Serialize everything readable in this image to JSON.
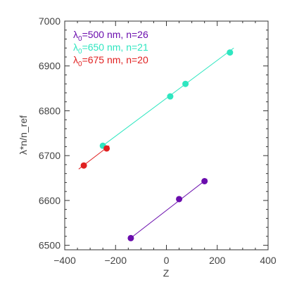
{
  "chart_data": {
    "type": "scatter",
    "xlabel": "Z",
    "ylabel": "λ*n/n_ref",
    "xlim": [
      -400,
      400
    ],
    "ylim": [
      6490,
      7000
    ],
    "x_ticks": [
      -400,
      -200,
      0,
      200,
      400
    ],
    "y_ticks": [
      6500,
      6600,
      6700,
      6800,
      6900,
      7000
    ],
    "grid": false,
    "legend_position": "top-left",
    "series": [
      {
        "name": "λ0=500 nm, n=26",
        "legend_parts": {
          "lambda": "λ",
          "sub": "0",
          "rest": "=500 nm, n=26"
        },
        "color": "#6a0dad",
        "points": [
          {
            "x": -140,
            "y": 6516
          },
          {
            "x": 50,
            "y": 6603
          },
          {
            "x": 150,
            "y": 6643
          }
        ],
        "fit": {
          "x": [
            -150,
            160
          ],
          "y": [
            6512,
            6648
          ]
        }
      },
      {
        "name": "λ0=650 nm, n=21",
        "legend_parts": {
          "lambda": "λ",
          "sub": "0",
          "rest": "=650 nm, n=21"
        },
        "color": "#2ee6c0",
        "points": [
          {
            "x": -250,
            "y": 6722
          },
          {
            "x": 15,
            "y": 6832
          },
          {
            "x": 75,
            "y": 6860
          },
          {
            "x": 250,
            "y": 6930
          }
        ],
        "fit": {
          "x": [
            -260,
            265
          ],
          "y": [
            6718,
            6940
          ]
        }
      },
      {
        "name": "λ0=675 nm, n=20",
        "legend_parts": {
          "lambda": "λ",
          "sub": "0",
          "rest": "=675 nm, n=20"
        },
        "color": "#e02020",
        "points": [
          {
            "x": -325,
            "y": 6678
          },
          {
            "x": -235,
            "y": 6716
          }
        ],
        "fit": {
          "x": [
            -345,
            -225
          ],
          "y": [
            6670,
            6722
          ]
        }
      }
    ]
  }
}
